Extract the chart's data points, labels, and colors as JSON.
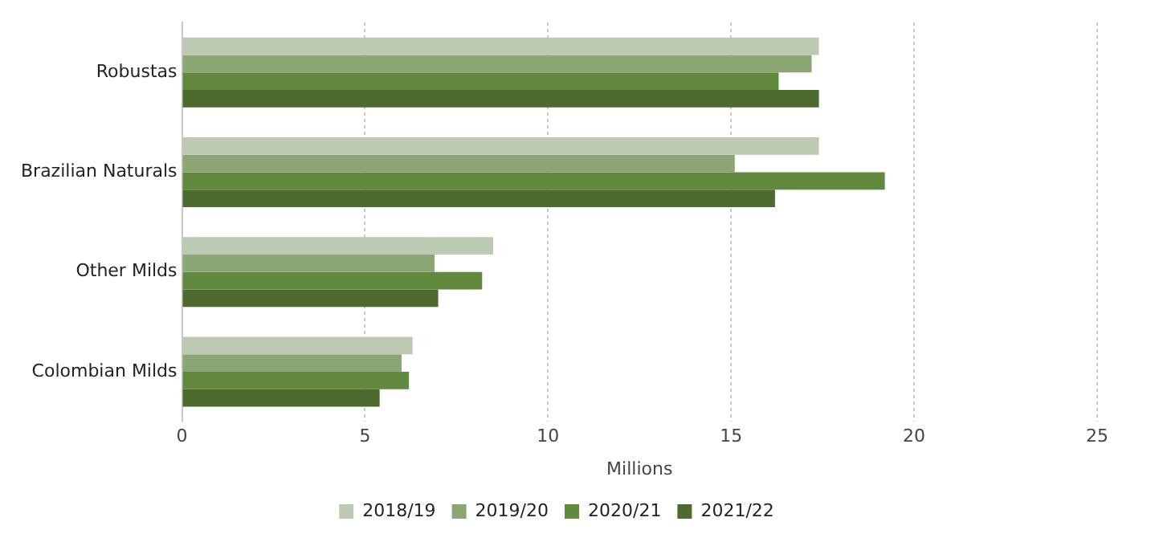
{
  "chart_data": {
    "type": "bar",
    "orientation": "horizontal",
    "categories": [
      "Robustas",
      "Brazilian Naturals",
      "Other Milds",
      "Colombian Milds"
    ],
    "series": [
      {
        "name": "2018/19",
        "color": "#bcc9b3",
        "values": [
          17.4,
          17.4,
          8.5,
          6.3
        ]
      },
      {
        "name": "2019/20",
        "color": "#8aa673",
        "values": [
          17.2,
          15.1,
          6.9,
          6.0
        ]
      },
      {
        "name": "2020/21",
        "color": "#628a3f",
        "values": [
          16.3,
          19.2,
          8.2,
          6.2
        ]
      },
      {
        "name": "2021/22",
        "color": "#4d6b2e",
        "values": [
          17.4,
          16.2,
          7.0,
          5.4
        ]
      }
    ],
    "xlabel": "Millions",
    "xlim": [
      0,
      25
    ],
    "xticks": [
      0,
      5,
      10,
      15,
      20,
      25
    ],
    "grid": "x",
    "legend": "bottom"
  }
}
